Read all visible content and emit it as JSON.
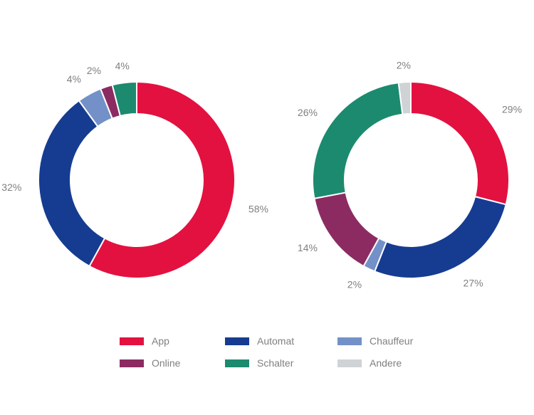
{
  "chart_data": [
    {
      "type": "pie",
      "donut": true,
      "categories": [
        "App",
        "Automat",
        "Chauffeur",
        "Online",
        "Schalter"
      ],
      "values": [
        58,
        32,
        4,
        2,
        4
      ],
      "labels": [
        "58%",
        "32%",
        "4%",
        "2%",
        "4%"
      ],
      "colors": [
        "#e31140",
        "#163c91",
        "#7391c8",
        "#8c2b62",
        "#1c8a6e"
      ],
      "title": ""
    },
    {
      "type": "pie",
      "donut": true,
      "categories": [
        "App",
        "Automat",
        "Chauffeur",
        "Online",
        "Schalter",
        "Andere"
      ],
      "values": [
        29,
        27,
        2,
        14,
        26,
        2
      ],
      "labels": [
        "29%",
        "27%",
        "2%",
        "14%",
        "26%",
        "2%"
      ],
      "colors": [
        "#e31140",
        "#163c91",
        "#7391c8",
        "#8c2b62",
        "#1c8a6e",
        "#cfd3d6"
      ],
      "title": ""
    }
  ],
  "legend": {
    "placement": "bottom",
    "items": [
      {
        "label": "App",
        "color": "#e31140"
      },
      {
        "label": "Automat",
        "color": "#163c91"
      },
      {
        "label": "Chauffeur",
        "color": "#7391c8"
      },
      {
        "label": "Online",
        "color": "#8c2b62"
      },
      {
        "label": "Schalter",
        "color": "#1c8a6e"
      },
      {
        "label": "Andere",
        "color": "#cfd3d6"
      }
    ]
  }
}
